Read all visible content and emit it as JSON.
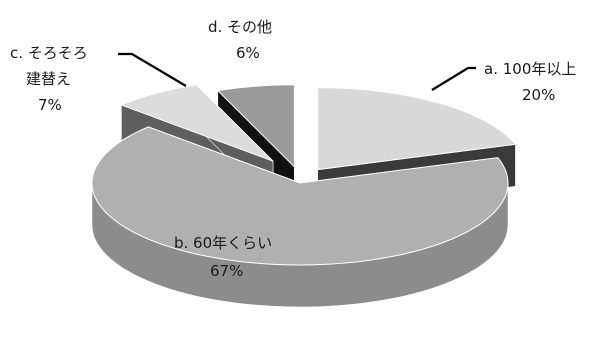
{
  "chart_data": {
    "type": "pie",
    "style": "3d-exploded",
    "title": "",
    "slices": [
      {
        "label_lines": [
          "a. 100年以上"
        ],
        "percent_label": "20%",
        "value": 20,
        "top_color": "#d9d9d9",
        "side_color": "#3a3a3a"
      },
      {
        "label_lines": [
          "b. 60年くらい"
        ],
        "percent_label": "67%",
        "value": 67,
        "top_color": "#b0b0b0",
        "side_color": "#8c8c8c"
      },
      {
        "label_lines": [
          "c. そろそろ",
          "建替え"
        ],
        "percent_label": "7%",
        "value": 7,
        "top_color": "#dcdcdc",
        "side_color": "#5e5e5e"
      },
      {
        "label_lines": [
          "d. その他"
        ],
        "percent_label": "6%",
        "value": 6,
        "top_color": "#9a9a9a",
        "side_color": "#111111"
      }
    ]
  }
}
